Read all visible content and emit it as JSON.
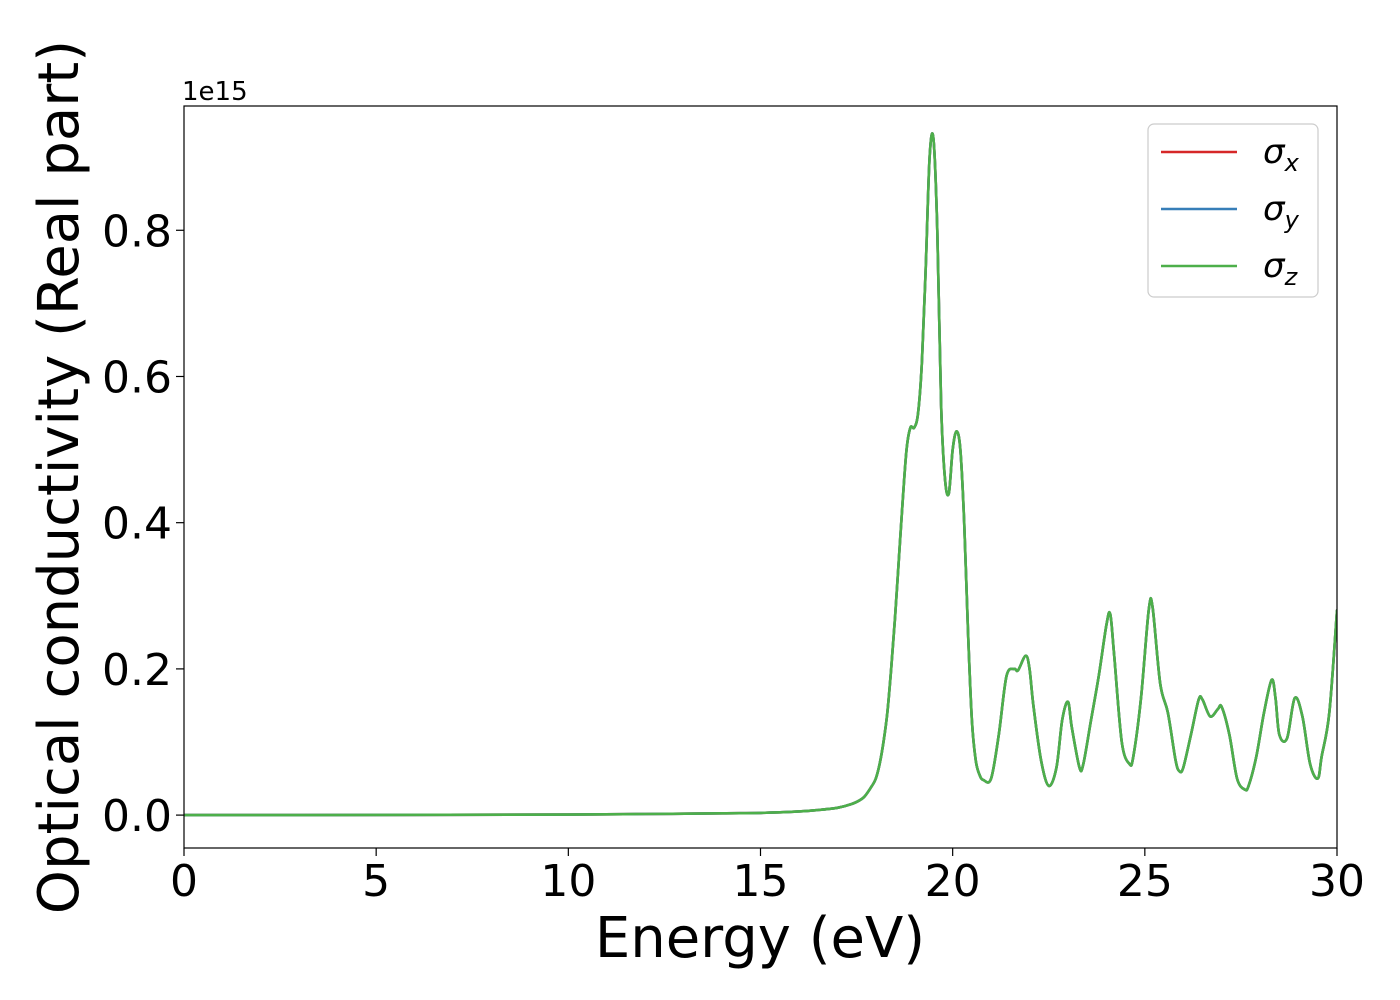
{
  "chart_data": {
    "type": "line",
    "title": "",
    "xlabel": "Energy (eV)",
    "ylabel": "Optical conductivity (Real part)",
    "y_offset_label": "1e15",
    "xlim": [
      0,
      30
    ],
    "ylim": [
      -0.045,
      0.97
    ],
    "xticks": [
      0,
      5,
      10,
      15,
      20,
      25,
      30
    ],
    "xtick_labels": [
      "0",
      "5",
      "10",
      "15",
      "20",
      "25",
      "30"
    ],
    "yticks": [
      0.0,
      0.2,
      0.4,
      0.6,
      0.8
    ],
    "ytick_labels": [
      "0.0",
      "0.2",
      "0.4",
      "0.6",
      "0.8"
    ],
    "grid": false,
    "legend_position": "top-right",
    "x": [
      0,
      5,
      10,
      12,
      14,
      15,
      16,
      16.5,
      17,
      17.3,
      17.5,
      17.7,
      17.9,
      18.0,
      18.1,
      18.2,
      18.3,
      18.4,
      18.5,
      18.6,
      18.7,
      18.8,
      18.9,
      19.0,
      19.1,
      19.2,
      19.3,
      19.4,
      19.5,
      19.6,
      19.7,
      19.8,
      19.9,
      20.0,
      20.1,
      20.2,
      20.3,
      20.4,
      20.5,
      20.6,
      20.7,
      20.8,
      21.0,
      21.2,
      21.4,
      21.6,
      21.7,
      21.9,
      22.0,
      22.1,
      22.3,
      22.5,
      22.7,
      22.85,
      23.0,
      23.1,
      23.3,
      23.4,
      23.6,
      23.8,
      24.0,
      24.1,
      24.2,
      24.4,
      24.6,
      24.7,
      24.9,
      25.1,
      25.2,
      25.4,
      25.6,
      25.8,
      25.9,
      26.0,
      26.2,
      26.4,
      26.5,
      26.7,
      26.9,
      27.0,
      27.2,
      27.4,
      27.6,
      27.7,
      27.9,
      28.1,
      28.3,
      28.4,
      28.5,
      28.7,
      28.9,
      29.1,
      29.3,
      29.5,
      29.6,
      29.8,
      30.0
    ],
    "series": [
      {
        "name": "σx",
        "label_base": "σ",
        "label_sub": "x",
        "color": "#d62728",
        "values": [
          0.0,
          0.0002,
          0.0008,
          0.0015,
          0.0025,
          0.003,
          0.005,
          0.007,
          0.01,
          0.014,
          0.018,
          0.025,
          0.04,
          0.05,
          0.07,
          0.1,
          0.14,
          0.2,
          0.27,
          0.35,
          0.43,
          0.5,
          0.53,
          0.53,
          0.55,
          0.62,
          0.75,
          0.9,
          0.925,
          0.8,
          0.56,
          0.46,
          0.44,
          0.5,
          0.525,
          0.5,
          0.4,
          0.25,
          0.13,
          0.075,
          0.055,
          0.048,
          0.05,
          0.11,
          0.19,
          0.2,
          0.198,
          0.218,
          0.2,
          0.15,
          0.075,
          0.04,
          0.065,
          0.13,
          0.155,
          0.12,
          0.065,
          0.07,
          0.13,
          0.19,
          0.26,
          0.275,
          0.22,
          0.1,
          0.07,
          0.08,
          0.16,
          0.28,
          0.285,
          0.18,
          0.14,
          0.075,
          0.06,
          0.065,
          0.11,
          0.158,
          0.158,
          0.135,
          0.145,
          0.148,
          0.11,
          0.05,
          0.035,
          0.04,
          0.08,
          0.14,
          0.185,
          0.16,
          0.11,
          0.105,
          0.16,
          0.135,
          0.07,
          0.05,
          0.08,
          0.14,
          0.28
        ]
      },
      {
        "name": "σy",
        "label_base": "σ",
        "label_sub": "y",
        "color": "#377eb8",
        "values": [
          0.0,
          0.0002,
          0.0008,
          0.0015,
          0.0025,
          0.003,
          0.005,
          0.007,
          0.01,
          0.014,
          0.018,
          0.025,
          0.04,
          0.05,
          0.07,
          0.1,
          0.14,
          0.2,
          0.27,
          0.35,
          0.43,
          0.5,
          0.53,
          0.53,
          0.55,
          0.62,
          0.75,
          0.9,
          0.925,
          0.8,
          0.56,
          0.46,
          0.44,
          0.5,
          0.525,
          0.5,
          0.4,
          0.25,
          0.13,
          0.075,
          0.055,
          0.048,
          0.05,
          0.11,
          0.19,
          0.2,
          0.198,
          0.218,
          0.2,
          0.15,
          0.075,
          0.04,
          0.065,
          0.13,
          0.155,
          0.12,
          0.065,
          0.07,
          0.13,
          0.19,
          0.26,
          0.275,
          0.22,
          0.1,
          0.07,
          0.08,
          0.16,
          0.28,
          0.285,
          0.18,
          0.14,
          0.075,
          0.06,
          0.065,
          0.11,
          0.158,
          0.158,
          0.135,
          0.145,
          0.148,
          0.11,
          0.05,
          0.035,
          0.04,
          0.08,
          0.14,
          0.185,
          0.16,
          0.11,
          0.105,
          0.16,
          0.135,
          0.07,
          0.05,
          0.08,
          0.14,
          0.28
        ]
      },
      {
        "name": "σz",
        "label_base": "σ",
        "label_sub": "z",
        "color": "#4daf4a",
        "values": [
          0.0,
          0.0002,
          0.0008,
          0.0015,
          0.0025,
          0.003,
          0.005,
          0.007,
          0.01,
          0.014,
          0.018,
          0.025,
          0.04,
          0.05,
          0.07,
          0.1,
          0.14,
          0.2,
          0.27,
          0.35,
          0.43,
          0.5,
          0.53,
          0.53,
          0.55,
          0.62,
          0.75,
          0.9,
          0.925,
          0.8,
          0.56,
          0.46,
          0.44,
          0.5,
          0.525,
          0.5,
          0.4,
          0.25,
          0.13,
          0.075,
          0.055,
          0.048,
          0.05,
          0.11,
          0.19,
          0.2,
          0.198,
          0.218,
          0.2,
          0.15,
          0.075,
          0.04,
          0.065,
          0.13,
          0.155,
          0.12,
          0.065,
          0.07,
          0.13,
          0.19,
          0.26,
          0.275,
          0.22,
          0.1,
          0.07,
          0.08,
          0.16,
          0.28,
          0.285,
          0.18,
          0.14,
          0.075,
          0.06,
          0.065,
          0.11,
          0.158,
          0.158,
          0.135,
          0.145,
          0.148,
          0.11,
          0.05,
          0.035,
          0.04,
          0.08,
          0.14,
          0.185,
          0.16,
          0.11,
          0.105,
          0.16,
          0.135,
          0.07,
          0.05,
          0.08,
          0.14,
          0.28
        ]
      }
    ]
  }
}
